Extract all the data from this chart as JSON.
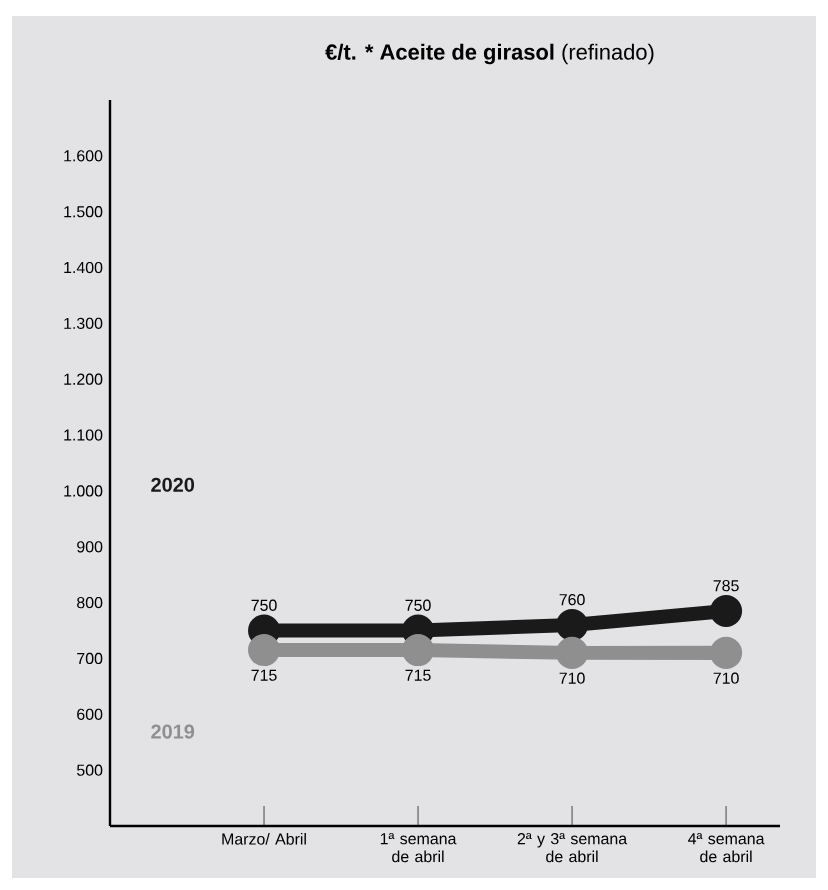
{
  "chart_data": {
    "type": "line",
    "title": "**€/t. * Aceite de girasol** (refinado)",
    "categories": [
      "Marzo/ Abril",
      "1ª semana de abril",
      "2ª y 3ª semana de abril",
      "4ª semana de abril"
    ],
    "series": [
      {
        "name": "2020",
        "color": "#1a1a1a",
        "values": [
          750,
          750,
          760,
          785
        ]
      },
      {
        "name": "2019",
        "color": "#8f8f8f",
        "values": [
          715,
          715,
          710,
          710
        ]
      }
    ],
    "ylim": [
      400,
      1700
    ],
    "yticks": [
      500,
      600,
      700,
      800,
      900,
      {
        "value": 1000,
        "label": "1.000"
      },
      {
        "value": 1100,
        "label": "1.100"
      },
      {
        "value": 1200,
        "label": "1.200"
      },
      {
        "value": 1300,
        "label": "1.300"
      },
      {
        "value": 1400,
        "label": "1.400"
      },
      {
        "value": 1500,
        "label": "1.500"
      },
      {
        "value": 1600,
        "label": "1.600"
      }
    ],
    "grid": false,
    "marker": "circle",
    "line_style": "solid",
    "data_labels": true
  }
}
